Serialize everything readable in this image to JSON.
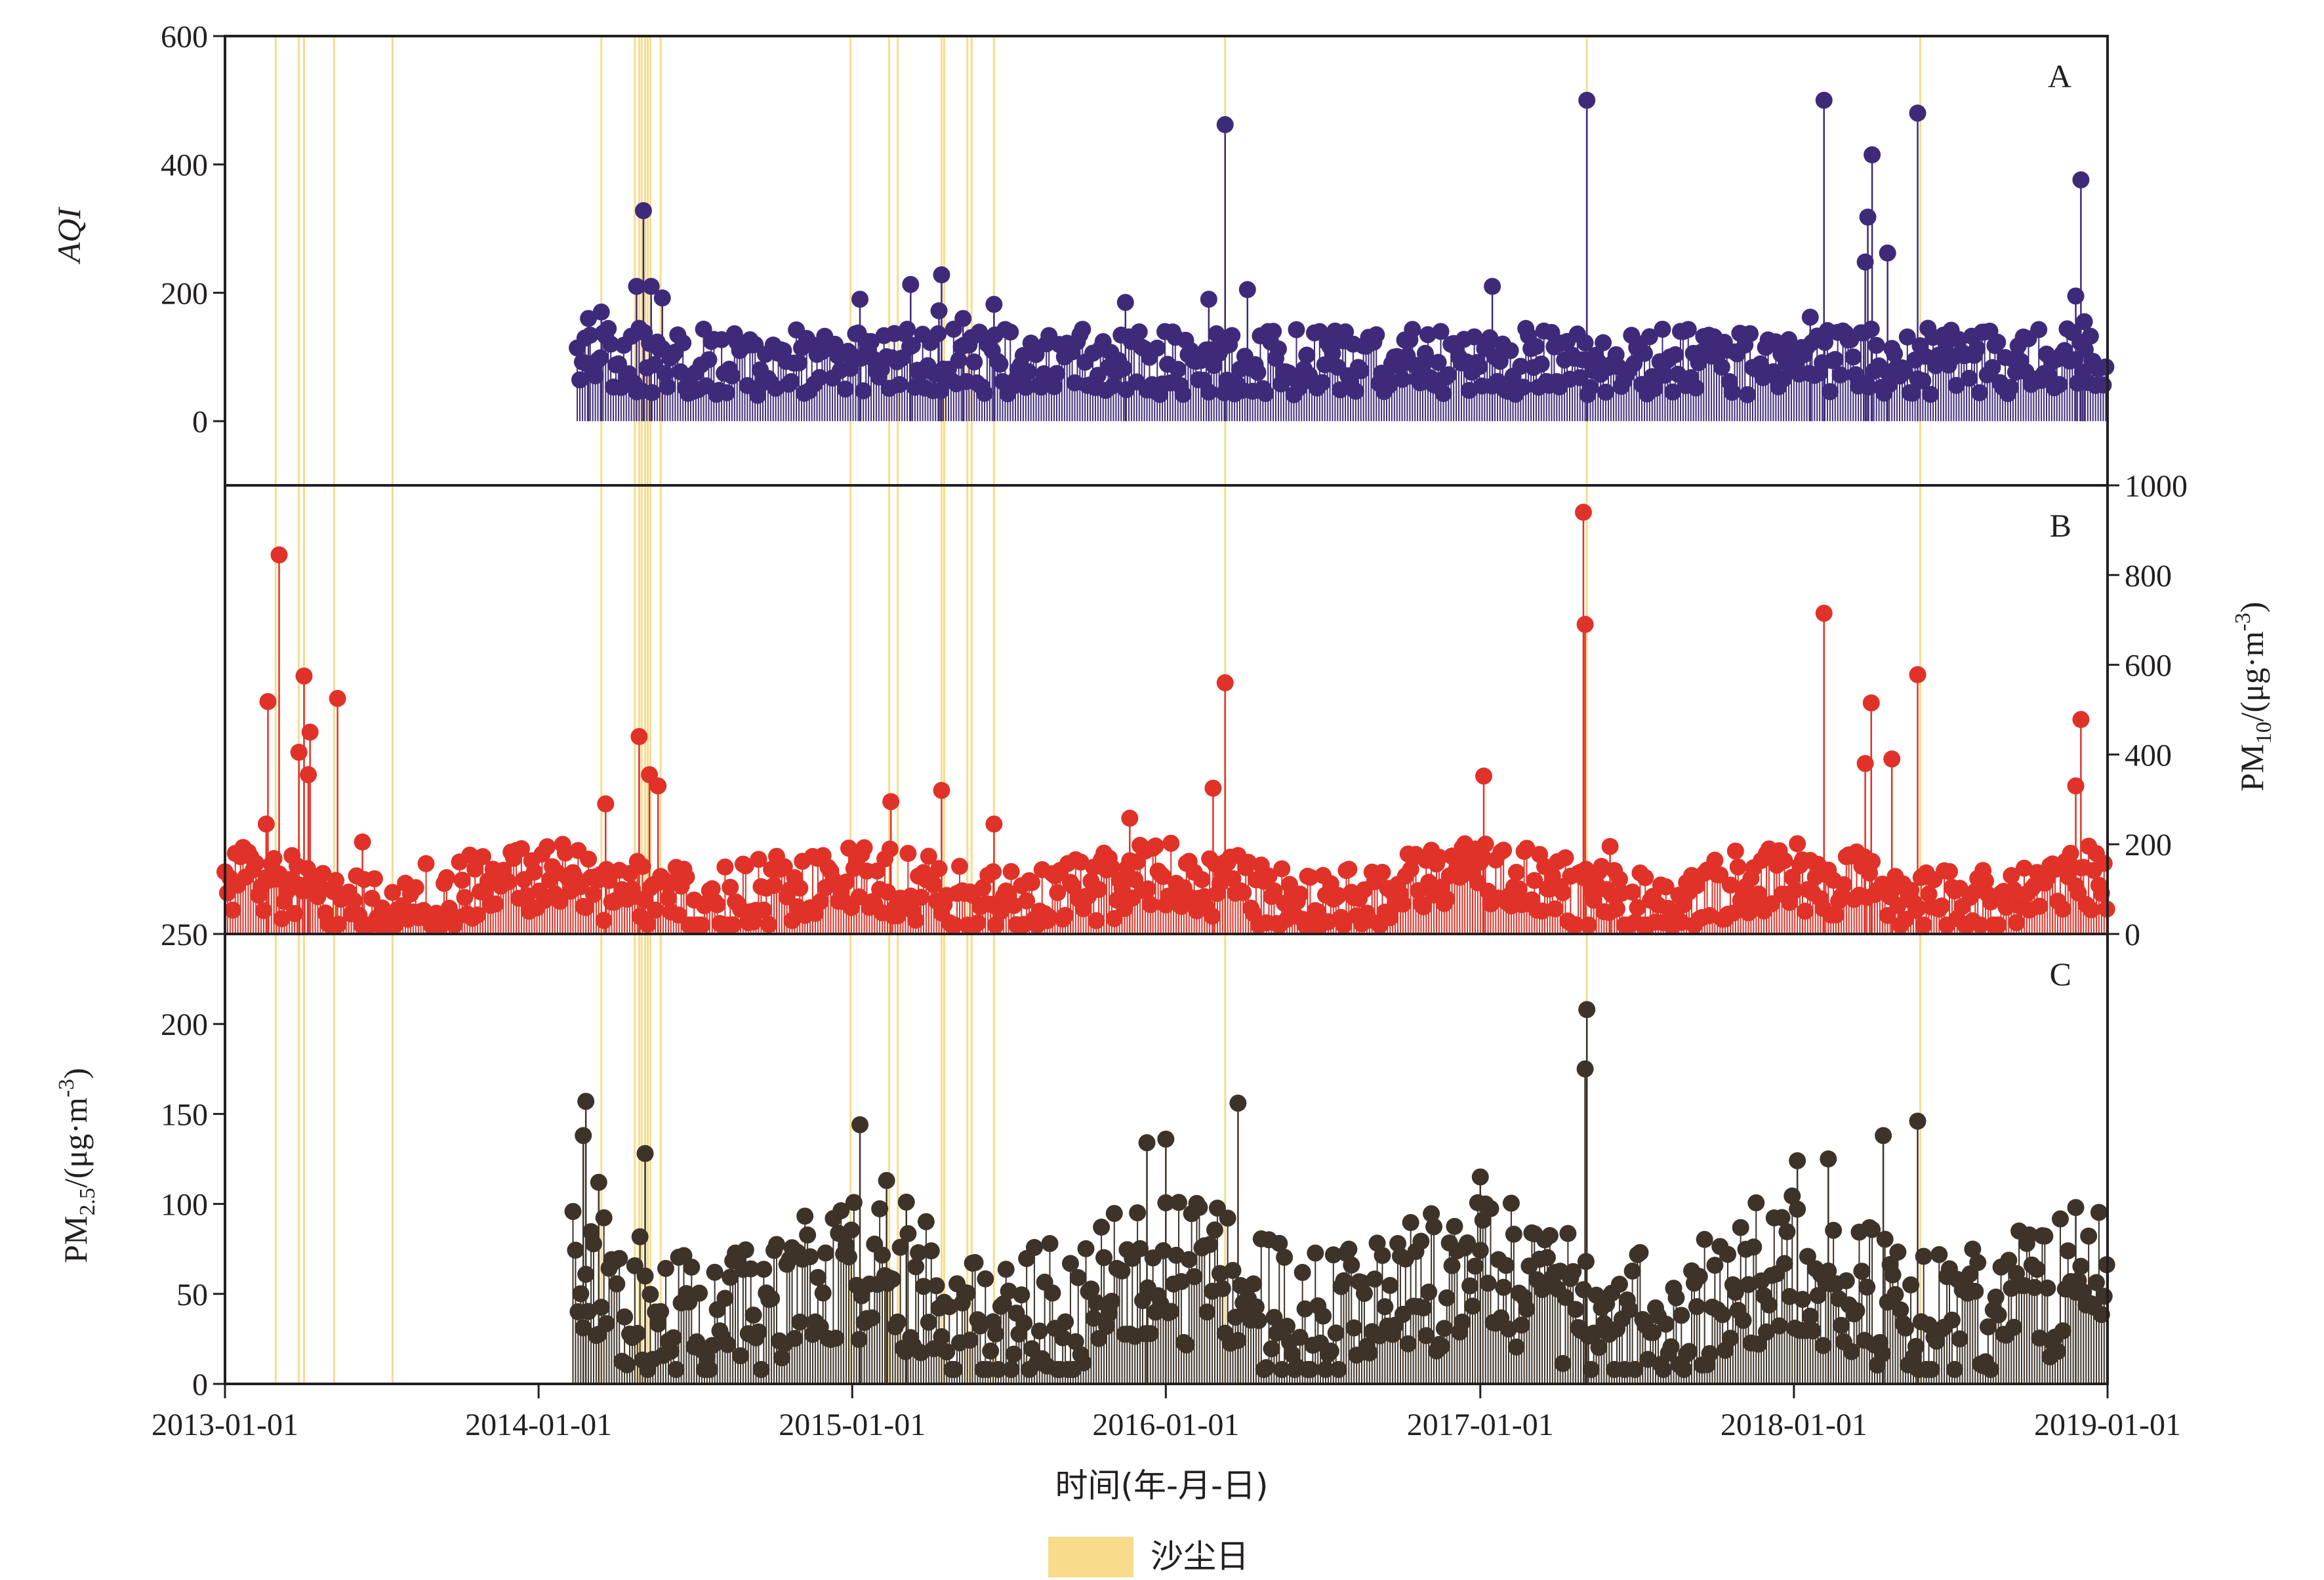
{
  "chart_data": {
    "type": "scatter",
    "style": "lollipop",
    "xlabel": "时间(年-月-日)",
    "x_ticks": [
      "2013-01-01",
      "2014-01-01",
      "2015-01-01",
      "2016-01-01",
      "2017-01-01",
      "2018-01-01",
      "2019-01-01"
    ],
    "xlim": [
      "2013-01-01",
      "2019-01-01"
    ],
    "legend": {
      "label": "沙尘日",
      "color": "#f8dc8c",
      "position": "bottom-center"
    },
    "dust_days": [
      "2013-03-01",
      "2013-03-28",
      "2013-04-03",
      "2013-05-08",
      "2013-07-15",
      "2014-03-15",
      "2014-04-23",
      "2014-04-28",
      "2014-05-01",
      "2014-05-05",
      "2014-05-08",
      "2014-05-11",
      "2014-05-23",
      "2014-12-30",
      "2015-02-13",
      "2015-02-23",
      "2015-04-15",
      "2015-04-18",
      "2015-05-15",
      "2015-05-20",
      "2015-06-15",
      "2016-03-10",
      "2017-05-05",
      "2018-05-28"
    ],
    "panels": [
      {
        "label": "A",
        "ylabel": "AQI",
        "y_axis_side": "left",
        "ylim": [
          -100,
          600
        ],
        "yticks": [
          0,
          200,
          400,
          600
        ],
        "color": "#3f2a7a",
        "baseline": 0,
        "data_start": "2014-02-15",
        "data_end": "2018-12-31",
        "baseline_level": 75,
        "noise_range": [
          40,
          145
        ],
        "peaks": [
          {
            "date": "2014-02-28",
            "value": 160
          },
          {
            "date": "2014-03-15",
            "value": 170
          },
          {
            "date": "2014-04-25",
            "value": 210
          },
          {
            "date": "2014-05-03",
            "value": 328
          },
          {
            "date": "2014-05-12",
            "value": 210
          },
          {
            "date": "2014-05-25",
            "value": 192
          },
          {
            "date": "2015-01-10",
            "value": 190
          },
          {
            "date": "2015-03-10",
            "value": 213
          },
          {
            "date": "2015-04-15",
            "value": 228
          },
          {
            "date": "2015-04-12",
            "value": 172
          },
          {
            "date": "2015-05-10",
            "value": 160
          },
          {
            "date": "2015-06-15",
            "value": 182
          },
          {
            "date": "2015-11-15",
            "value": 185
          },
          {
            "date": "2016-02-20",
            "value": 190
          },
          {
            "date": "2016-03-10",
            "value": 462
          },
          {
            "date": "2016-04-05",
            "value": 205
          },
          {
            "date": "2017-01-15",
            "value": 210
          },
          {
            "date": "2017-05-05",
            "value": 500
          },
          {
            "date": "2018-01-20",
            "value": 162
          },
          {
            "date": "2018-02-05",
            "value": 500
          },
          {
            "date": "2018-03-28",
            "value": 318
          },
          {
            "date": "2018-04-02",
            "value": 415
          },
          {
            "date": "2018-03-25",
            "value": 248
          },
          {
            "date": "2018-04-20",
            "value": 262
          },
          {
            "date": "2018-05-25",
            "value": 480
          },
          {
            "date": "2018-11-25",
            "value": 195
          },
          {
            "date": "2018-12-01",
            "value": 376
          },
          {
            "date": "2018-12-05",
            "value": 155
          }
        ]
      },
      {
        "label": "B",
        "ylabel": "PM10/(μg·m-3)",
        "ylabel_main": "PM",
        "ylabel_sub": "10",
        "ylabel_rest": "/(μg·m",
        "ylabel_sup": "-3",
        "ylabel_end": ")",
        "y_axis_side": "right",
        "ylim": [
          0,
          1000
        ],
        "yticks": [
          0,
          200,
          400,
          600,
          800,
          1000
        ],
        "color": "#e03228",
        "baseline": 0,
        "data_start": "2013-01-01",
        "data_end": "2018-12-31",
        "baseline_level": 75,
        "noise_range": [
          20,
          175
        ],
        "peaks": [
          {
            "date": "2013-02-20",
            "value": 518
          },
          {
            "date": "2013-03-05",
            "value": 845
          },
          {
            "date": "2013-02-18",
            "value": 245
          },
          {
            "date": "2013-03-28",
            "value": 405
          },
          {
            "date": "2013-04-03",
            "value": 575
          },
          {
            "date": "2013-04-10",
            "value": 450
          },
          {
            "date": "2013-04-08",
            "value": 355
          },
          {
            "date": "2013-05-12",
            "value": 525
          },
          {
            "date": "2013-06-10",
            "value": 205
          },
          {
            "date": "2014-03-20",
            "value": 290
          },
          {
            "date": "2014-04-28",
            "value": 440
          },
          {
            "date": "2014-05-10",
            "value": 355
          },
          {
            "date": "2014-05-20",
            "value": 330
          },
          {
            "date": "2015-02-15",
            "value": 295
          },
          {
            "date": "2015-04-15",
            "value": 320
          },
          {
            "date": "2015-06-15",
            "value": 245
          },
          {
            "date": "2015-11-20",
            "value": 258
          },
          {
            "date": "2016-02-25",
            "value": 325
          },
          {
            "date": "2016-03-10",
            "value": 560
          },
          {
            "date": "2017-01-05",
            "value": 352
          },
          {
            "date": "2017-05-01",
            "value": 940
          },
          {
            "date": "2017-05-03",
            "value": 690
          },
          {
            "date": "2017-06-01",
            "value": 195
          },
          {
            "date": "2018-02-05",
            "value": 715
          },
          {
            "date": "2018-03-25",
            "value": 380
          },
          {
            "date": "2018-04-01",
            "value": 515
          },
          {
            "date": "2018-04-25",
            "value": 390
          },
          {
            "date": "2018-05-25",
            "value": 578
          },
          {
            "date": "2018-11-25",
            "value": 330
          },
          {
            "date": "2018-12-01",
            "value": 478
          }
        ]
      },
      {
        "label": "C",
        "ylabel": "PM2.5/(μg·m-3)",
        "ylabel_main": "PM",
        "ylabel_sub": "2.5",
        "ylabel_rest": "/(μg·m",
        "ylabel_sup": "-3",
        "ylabel_end": ")",
        "y_axis_side": "left",
        "ylim": [
          0,
          250
        ],
        "yticks": [
          0,
          50,
          100,
          150,
          200,
          250
        ],
        "color": "#3d3328",
        "baseline": 0,
        "data_start": "2014-02-10",
        "data_end": "2018-12-31",
        "baseline_level": 35,
        "noise_range": [
          8,
          90
        ],
        "peaks": [
          {
            "date": "2014-02-25",
            "value": 157
          },
          {
            "date": "2014-02-22",
            "value": 138
          },
          {
            "date": "2014-03-12",
            "value": 112
          },
          {
            "date": "2014-05-05",
            "value": 128
          },
          {
            "date": "2015-01-10",
            "value": 144
          },
          {
            "date": "2015-02-10",
            "value": 113
          },
          {
            "date": "2015-03-05",
            "value": 101
          },
          {
            "date": "2015-12-10",
            "value": 134
          },
          {
            "date": "2016-01-01",
            "value": 136
          },
          {
            "date": "2016-03-25",
            "value": 156
          },
          {
            "date": "2017-01-01",
            "value": 115
          },
          {
            "date": "2017-05-05",
            "value": 208
          },
          {
            "date": "2017-05-03",
            "value": 175
          },
          {
            "date": "2018-01-05",
            "value": 124
          },
          {
            "date": "2018-02-10",
            "value": 125
          },
          {
            "date": "2018-04-15",
            "value": 138
          },
          {
            "date": "2018-05-25",
            "value": 146
          },
          {
            "date": "2018-11-25",
            "value": 98
          }
        ]
      }
    ]
  }
}
